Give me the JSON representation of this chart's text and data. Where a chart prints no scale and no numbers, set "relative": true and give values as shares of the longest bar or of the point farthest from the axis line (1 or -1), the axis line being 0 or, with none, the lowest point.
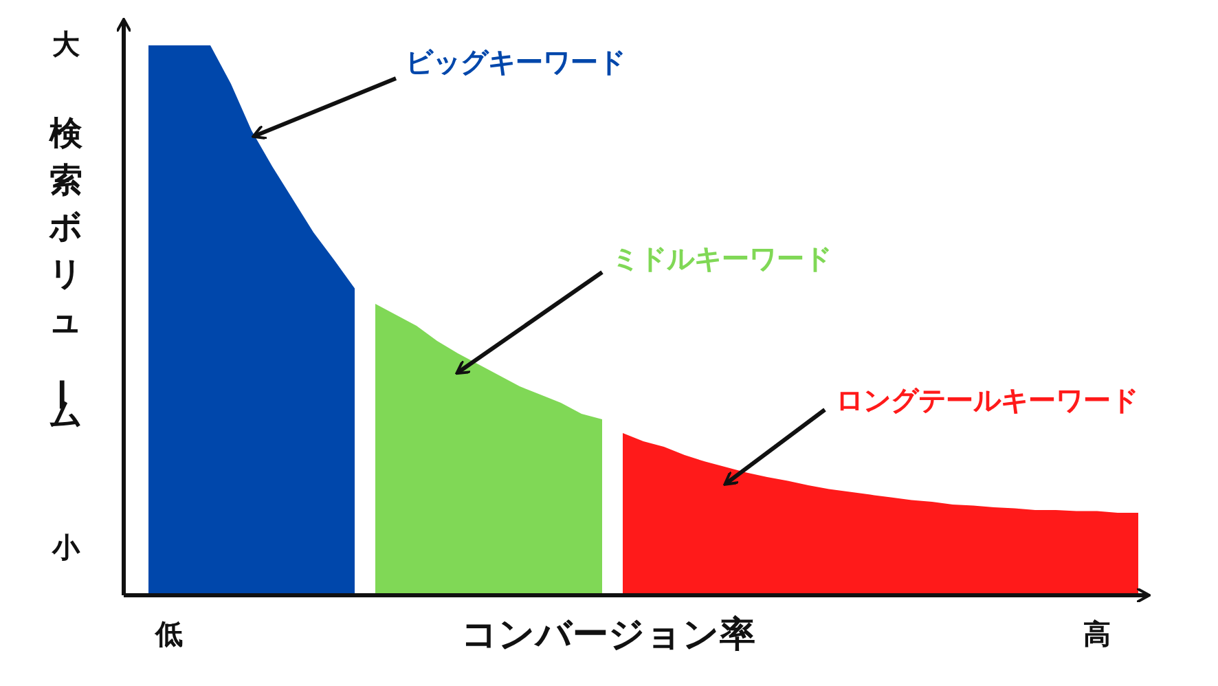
{
  "chart_data": {
    "type": "area",
    "relative": true,
    "xlabel": "コンバージョン率",
    "ylabel": "検索ボリューム",
    "categories": [
      null,
      "低",
      null,
      null,
      null,
      null,
      null,
      null,
      null,
      null,
      null,
      null,
      null,
      null,
      null,
      null,
      null,
      null,
      null,
      null,
      null,
      null,
      null,
      null,
      null,
      null,
      null,
      null,
      null,
      null,
      null,
      null,
      null,
      null,
      null,
      null,
      null,
      null,
      null,
      null,
      null,
      null,
      null,
      null,
      null,
      null,
      "高",
      null,
      null
    ],
    "annotations": [
      "大",
      "小"
    ],
    "series": [
      {
        "name": "ビッグキーワード",
        "color": "#0047ab",
        "values": [
          1,
          1,
          1,
          1,
          0.93,
          0.845,
          0.78,
          0.72,
          0.66,
          0.61,
          0.558,
          null,
          null,
          null,
          null,
          null,
          null,
          null,
          null,
          null,
          null,
          null,
          null,
          null,
          null,
          null,
          null,
          null,
          null,
          null,
          null,
          null,
          null,
          null,
          null,
          null,
          null,
          null,
          null,
          null,
          null,
          null,
          null,
          null,
          null,
          null,
          null,
          null,
          null
        ]
      },
      {
        "name": "ミドルキーワード",
        "color": "#80d856",
        "values": [
          null,
          null,
          null,
          null,
          null,
          null,
          null,
          null,
          null,
          null,
          null,
          0.53,
          0.51,
          0.49,
          0.4625,
          0.44,
          0.42,
          0.4,
          0.38,
          0.365,
          0.35,
          0.33,
          0.32,
          null,
          null,
          null,
          null,
          null,
          null,
          null,
          null,
          null,
          null,
          null,
          null,
          null,
          null,
          null,
          null,
          null,
          null,
          null,
          null,
          null,
          null,
          null,
          null,
          null,
          null
        ]
      },
      {
        "name": "ロングテールキーワード",
        "color": "#ff1a1a",
        "values": [
          null,
          null,
          null,
          null,
          null,
          null,
          null,
          null,
          null,
          null,
          null,
          null,
          null,
          null,
          null,
          null,
          null,
          null,
          null,
          null,
          null,
          null,
          null,
          0.295,
          0.28,
          0.27,
          0.255,
          0.243,
          0.233,
          0.223,
          0.215,
          0.208,
          0.2,
          0.193,
          0.188,
          0.183,
          0.178,
          0.173,
          0.17,
          0.165,
          0.163,
          0.16,
          0.158,
          0.155,
          0.155,
          0.153,
          0.153,
          0.15,
          0.15
        ]
      }
    ]
  }
}
